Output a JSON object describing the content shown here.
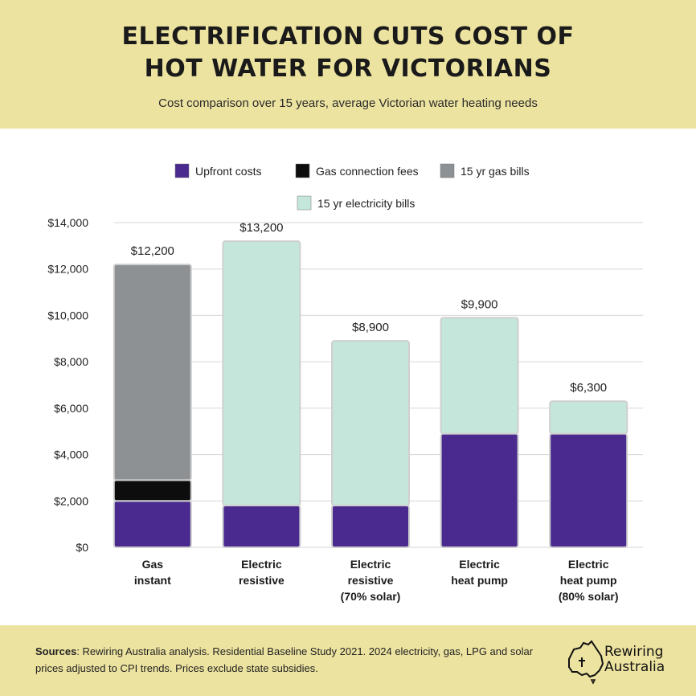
{
  "header": {
    "title_line1": "ELECTRIFICATION CUTS COST OF",
    "title_line2": "HOT WATER FOR VICTORIANS",
    "subtitle": "Cost comparison over 15 years, average Victorian water heating needs"
  },
  "chart_data": {
    "type": "bar",
    "stacked": true,
    "categories": [
      [
        "Gas",
        "instant"
      ],
      [
        "Electric",
        "resistive"
      ],
      [
        "Electric",
        "resistive",
        "(70% solar)"
      ],
      [
        "Electric",
        "heat pump"
      ],
      [
        "Electric",
        "heat pump",
        "(80% solar)"
      ]
    ],
    "series": [
      {
        "name": "Upfront costs",
        "color": "#4a2a8f",
        "values": [
          2000,
          1800,
          1800,
          4900,
          4900
        ]
      },
      {
        "name": "Gas connection fees",
        "color": "#0d0d0d",
        "values": [
          900,
          0,
          0,
          0,
          0
        ]
      },
      {
        "name": "15 yr gas bills",
        "color": "#8e9194",
        "values": [
          9300,
          0,
          0,
          0,
          0
        ]
      },
      {
        "name": "15 yr electricity bills",
        "color": "#c5e6da",
        "values": [
          0,
          11400,
          7100,
          5000,
          1400
        ]
      }
    ],
    "totals": [
      "$12,200",
      "$13,200",
      "$8,900",
      "$9,900",
      "$6,300"
    ],
    "yticks": [
      "$0",
      "$2,000",
      "$4,000",
      "$6,000",
      "$8,000",
      "$10,000",
      "$12,000",
      "$14,000"
    ],
    "ylim": [
      0,
      14000
    ],
    "grid": true,
    "legend_position": "top"
  },
  "footer": {
    "sources_label": "Sources",
    "sources_text": ": Rewiring Australia analysis. Residential Baseline Study 2021. 2024 electricity, gas, LPG and solar prices adjusted to CPI trends. Prices exclude state subsidies.",
    "logo_line1": "Rewiring",
    "logo_line2": "Australia"
  }
}
